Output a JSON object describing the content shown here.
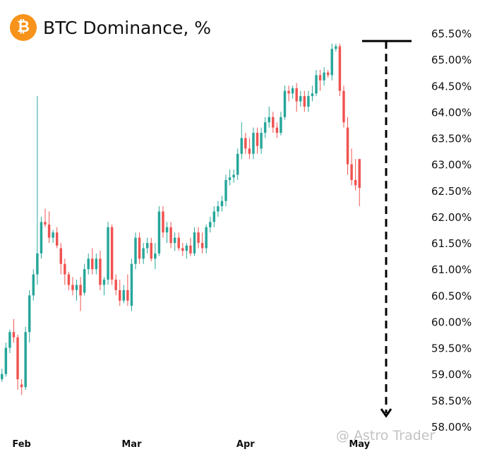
{
  "header": {
    "logo_glyph": "₿",
    "title": "BTC Dominance, %"
  },
  "watermark": {
    "text": "@ Astro Trader",
    "icon": "chat-bubble-icon"
  },
  "colors": {
    "up": "#26a69a",
    "down": "#ef5350",
    "annotation": "#000000",
    "axis_text": "#111111",
    "logo": "#f7931a"
  },
  "chart_data": {
    "type": "candlestick",
    "title": "BTC Dominance, %",
    "xlabel": "",
    "ylabel": "",
    "ylim": [
      58.0,
      65.5
    ],
    "y_ticks": [
      65.5,
      65.0,
      64.5,
      64.0,
      63.5,
      63.0,
      62.5,
      62.0,
      61.5,
      61.0,
      60.5,
      60.0,
      59.5,
      59.0,
      58.5,
      58.0
    ],
    "y_tick_labels": [
      "65.50%",
      "65.00%",
      "64.50%",
      "64.00%",
      "63.50%",
      "63.00%",
      "62.50%",
      "62.00%",
      "61.50%",
      "61.00%",
      "60.50%",
      "60.00%",
      "59.50%",
      "59.00%",
      "58.50%",
      "58.00%"
    ],
    "x_tick_labels": [
      "Feb",
      "Mar",
      "Apr",
      "May"
    ],
    "x_tick_index": [
      5,
      33,
      62,
      91
    ],
    "grid": false,
    "legend": "none",
    "series": [
      {
        "candles": [
          [
            58.9,
            59.1,
            58.85,
            59.0
          ],
          [
            59.0,
            59.6,
            58.95,
            59.5
          ],
          [
            59.5,
            59.85,
            59.4,
            59.8
          ],
          [
            59.8,
            60.05,
            59.6,
            59.7
          ],
          [
            59.7,
            59.75,
            58.7,
            58.9
          ],
          [
            58.8,
            58.9,
            58.6,
            58.75
          ],
          [
            58.75,
            59.9,
            58.7,
            59.8
          ],
          [
            59.8,
            60.6,
            59.6,
            60.5
          ],
          [
            60.5,
            61.0,
            60.4,
            60.9
          ],
          [
            60.9,
            64.3,
            60.7,
            61.3
          ],
          [
            61.3,
            62.0,
            61.2,
            61.9
          ],
          [
            61.9,
            62.15,
            61.8,
            61.85
          ],
          [
            61.85,
            62.1,
            61.5,
            61.6
          ],
          [
            61.6,
            61.75,
            61.5,
            61.7
          ],
          [
            61.7,
            61.8,
            61.4,
            61.45
          ],
          [
            61.4,
            61.5,
            60.9,
            61.1
          ],
          [
            61.1,
            61.2,
            60.7,
            60.9
          ],
          [
            60.9,
            60.95,
            60.6,
            60.7
          ],
          [
            60.7,
            60.85,
            60.5,
            60.6
          ],
          [
            60.6,
            60.8,
            60.4,
            60.7
          ],
          [
            60.7,
            60.85,
            60.2,
            60.5
          ],
          [
            60.55,
            61.1,
            60.5,
            61.0
          ],
          [
            61.0,
            61.3,
            60.9,
            61.2
          ],
          [
            61.2,
            61.4,
            60.9,
            61.0
          ],
          [
            61.0,
            61.3,
            60.9,
            61.2
          ],
          [
            61.2,
            61.35,
            60.6,
            60.7
          ],
          [
            60.7,
            60.85,
            60.5,
            60.8
          ],
          [
            60.8,
            61.9,
            60.7,
            61.8
          ],
          [
            61.8,
            61.85,
            60.7,
            60.8
          ],
          [
            60.8,
            60.9,
            60.5,
            60.6
          ],
          [
            60.6,
            60.8,
            60.3,
            60.4
          ],
          [
            60.4,
            60.7,
            60.35,
            60.6
          ],
          [
            60.6,
            60.9,
            60.3,
            60.4
          ],
          [
            60.3,
            61.2,
            60.2,
            61.1
          ],
          [
            61.1,
            61.7,
            61.0,
            61.6
          ],
          [
            61.6,
            61.7,
            61.1,
            61.2
          ],
          [
            61.2,
            61.5,
            61.1,
            61.4
          ],
          [
            61.4,
            61.6,
            61.3,
            61.5
          ],
          [
            61.5,
            61.6,
            61.15,
            61.2
          ],
          [
            61.2,
            61.5,
            61.0,
            61.3
          ],
          [
            61.3,
            62.2,
            61.25,
            62.1
          ],
          [
            62.1,
            62.2,
            61.6,
            61.7
          ],
          [
            61.7,
            61.9,
            61.5,
            61.8
          ],
          [
            61.8,
            61.9,
            61.4,
            61.5
          ],
          [
            61.5,
            61.7,
            61.35,
            61.6
          ],
          [
            61.6,
            61.7,
            61.35,
            61.4
          ],
          [
            61.4,
            61.5,
            61.25,
            61.35
          ],
          [
            61.35,
            61.5,
            61.2,
            61.45
          ],
          [
            61.45,
            61.6,
            61.25,
            61.3
          ],
          [
            61.3,
            61.8,
            61.25,
            61.7
          ],
          [
            61.7,
            61.8,
            61.4,
            61.5
          ],
          [
            61.5,
            61.7,
            61.3,
            61.4
          ],
          [
            61.4,
            61.85,
            61.3,
            61.8
          ],
          [
            61.8,
            62.0,
            61.7,
            61.9
          ],
          [
            61.9,
            62.2,
            61.8,
            62.1
          ],
          [
            62.1,
            62.3,
            62.0,
            62.2
          ],
          [
            62.2,
            62.4,
            62.1,
            62.3
          ],
          [
            62.3,
            62.8,
            62.2,
            62.7
          ],
          [
            62.7,
            62.9,
            62.6,
            62.75
          ],
          [
            62.75,
            62.9,
            62.65,
            62.8
          ],
          [
            62.8,
            63.3,
            62.7,
            63.2
          ],
          [
            63.2,
            63.8,
            63.1,
            63.5
          ],
          [
            63.5,
            63.6,
            63.2,
            63.3
          ],
          [
            63.3,
            63.5,
            63.1,
            63.2
          ],
          [
            63.2,
            63.7,
            63.1,
            63.6
          ],
          [
            63.6,
            63.7,
            63.2,
            63.35
          ],
          [
            63.3,
            63.7,
            63.2,
            63.6
          ],
          [
            63.6,
            63.9,
            63.5,
            63.8
          ],
          [
            63.8,
            64.1,
            63.7,
            63.9
          ],
          [
            63.9,
            64.0,
            63.6,
            63.7
          ],
          [
            63.7,
            63.8,
            63.5,
            63.6
          ],
          [
            63.6,
            64.0,
            63.55,
            63.9
          ],
          [
            63.9,
            64.5,
            63.85,
            64.4
          ],
          [
            64.4,
            64.5,
            64.2,
            64.35
          ],
          [
            64.35,
            64.5,
            64.25,
            64.45
          ],
          [
            64.45,
            64.55,
            64.0,
            64.2
          ],
          [
            64.2,
            64.4,
            64.1,
            64.3
          ],
          [
            64.3,
            64.4,
            64.0,
            64.1
          ],
          [
            64.1,
            64.4,
            64.0,
            64.3
          ],
          [
            64.3,
            64.5,
            64.2,
            64.35
          ],
          [
            64.35,
            64.8,
            64.3,
            64.7
          ],
          [
            64.7,
            64.8,
            64.4,
            64.6
          ],
          [
            64.6,
            64.85,
            64.5,
            64.75
          ],
          [
            64.75,
            64.8,
            64.65,
            64.7
          ],
          [
            64.7,
            65.3,
            64.6,
            65.2
          ],
          [
            65.2,
            65.3,
            65.15,
            65.25
          ],
          [
            65.25,
            65.3,
            64.3,
            64.4
          ],
          [
            64.4,
            64.5,
            63.7,
            63.8
          ],
          [
            63.7,
            63.9,
            62.8,
            63.0
          ],
          [
            63.0,
            63.3,
            62.6,
            62.7
          ],
          [
            62.7,
            63.1,
            62.5,
            62.6
          ],
          [
            63.1,
            63.1,
            62.2,
            62.55
          ]
        ]
      }
    ],
    "annotation": {
      "type": "bracketed-arrow",
      "from_value": 65.35,
      "to_value": 58.2,
      "direction": "down"
    }
  }
}
